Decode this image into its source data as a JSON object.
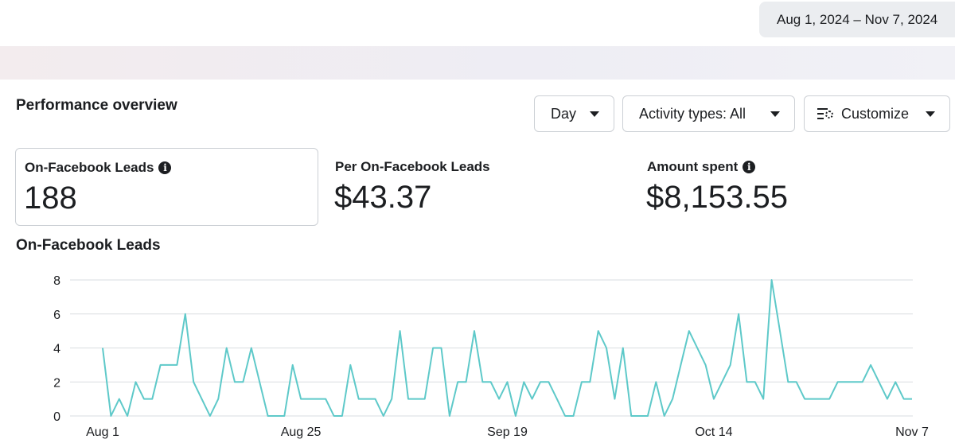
{
  "header": {
    "date_range": "Aug 1, 2024 – Nov 7, 2024"
  },
  "overview": {
    "title": "Performance overview",
    "controls": {
      "granularity": "Day",
      "activity_types": "Activity types: All",
      "customize": "Customize"
    },
    "icons": {
      "info": "info-icon",
      "customize": "customize-columns-icon",
      "dropdown": "caret-down-icon"
    }
  },
  "metrics": [
    {
      "label": "On-Facebook Leads",
      "value": "188",
      "has_info": true
    },
    {
      "label": "Per On-Facebook Leads",
      "value": "$43.37",
      "has_info": false
    },
    {
      "label": "Amount spent",
      "value": "$8,153.55",
      "has_info": true
    }
  ],
  "chart_data": {
    "type": "line",
    "title": "On-Facebook Leads",
    "line_color": "#5ec9c9",
    "grid": true,
    "ylim": [
      0,
      8
    ],
    "yticks": [
      "0",
      "2",
      "4",
      "6",
      "8"
    ],
    "xticks": [
      {
        "label": "Aug 1",
        "index": 0
      },
      {
        "label": "Aug 25",
        "index": 24
      },
      {
        "label": "Sep 19",
        "index": 49
      },
      {
        "label": "Oct 14",
        "index": 74
      },
      {
        "label": "Nov 7",
        "index": 98
      }
    ],
    "values": [
      4,
      0,
      1,
      0,
      2,
      1,
      1,
      3,
      3,
      3,
      6,
      2,
      1,
      0,
      1,
      4,
      2,
      2,
      4,
      2,
      0,
      0,
      0,
      3,
      1,
      1,
      1,
      1,
      0,
      0,
      3,
      1,
      1,
      1,
      0,
      1,
      5,
      1,
      1,
      1,
      4,
      4,
      0,
      2,
      2,
      5,
      2,
      2,
      1,
      2,
      0,
      2,
      1,
      2,
      2,
      1,
      0,
      0,
      2,
      2,
      5,
      4,
      1,
      4,
      0,
      0,
      0,
      2,
      0,
      1,
      3,
      5,
      4,
      3,
      1,
      2,
      3,
      6,
      2,
      2,
      1,
      8,
      5,
      2,
      2,
      1,
      1,
      1,
      1,
      2,
      2,
      2,
      2,
      3,
      2,
      1,
      2,
      1,
      1
    ]
  }
}
